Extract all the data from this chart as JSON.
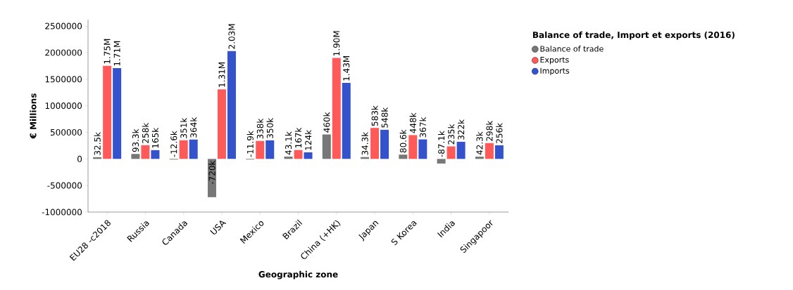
{
  "chart_data": {
    "type": "bar",
    "xlabel": "Geographic zone",
    "ylabel": "€ Millions",
    "legend_title": "Balance of trade, Import et exports (2016)",
    "categories": [
      "EU28 -c2018",
      "Russia",
      "Canada",
      "USA",
      "Mexico",
      "Brazil",
      "China (+HK)",
      "Japan",
      "S Korea",
      "India",
      "Singapoor"
    ],
    "series": [
      {
        "name": "Balance of trade",
        "color": "#777777",
        "values": [
          32500,
          93300,
          -12600,
          -720000,
          -11900,
          43100,
          460000,
          34300,
          80600,
          -87100,
          42300
        ],
        "value_labels": [
          "32.5k",
          "93.3k",
          "-12.6k",
          "-720k",
          "-11.9k",
          "43.1k",
          "460k",
          "34.3k",
          "80.6k",
          "-87.1k",
          "42.3k"
        ]
      },
      {
        "name": "Exports",
        "color": "#ff5a5a",
        "values": [
          1750000,
          258000,
          351000,
          1310000,
          338000,
          167000,
          1900000,
          583000,
          448000,
          235000,
          298000
        ],
        "value_labels": [
          "1.75M",
          "258k",
          "351k",
          "1.31M",
          "338k",
          "167k",
          "1.90M",
          "583k",
          "448k",
          "235k",
          "298k"
        ]
      },
      {
        "name": "Imports",
        "color": "#3352cc",
        "values": [
          1710000,
          165000,
          364000,
          2030000,
          350000,
          124000,
          1430000,
          548000,
          367000,
          322000,
          256000
        ],
        "value_labels": [
          "1.71M",
          "165k",
          "364k",
          "2.03M",
          "350k",
          "124k",
          "1.43M",
          "548k",
          "367k",
          "322k",
          "256k"
        ]
      }
    ],
    "ylim": [
      -1000000,
      2620000
    ],
    "yticks": [
      -1000000,
      -500000,
      0,
      500000,
      1000000,
      1500000,
      2000000,
      2500000
    ],
    "grid": false,
    "legend": "right"
  }
}
